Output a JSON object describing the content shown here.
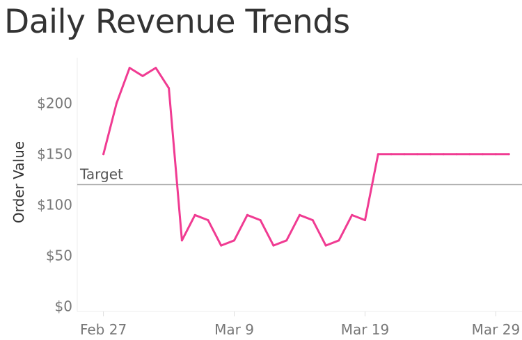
{
  "chart_data": {
    "type": "line",
    "title": "Daily Revenue Trends",
    "ylabel": "Order Value",
    "xlabel": "",
    "ylim": [
      -5,
      245
    ],
    "xlim": [
      "2025-02-25",
      "2025-03-31"
    ],
    "y_ticks": [
      {
        "value": 0,
        "label": "$0"
      },
      {
        "value": 50,
        "label": "$50"
      },
      {
        "value": 100,
        "label": "$100"
      },
      {
        "value": 150,
        "label": "$150"
      },
      {
        "value": 200,
        "label": "$200"
      }
    ],
    "x_ticks": [
      {
        "date": "2025-02-27",
        "label": "Feb 27"
      },
      {
        "date": "2025-03-09",
        "label": "Mar 9"
      },
      {
        "date": "2025-03-19",
        "label": "Mar 19"
      },
      {
        "date": "2025-03-29",
        "label": "Mar 29"
      }
    ],
    "reference_line": {
      "label": "Target",
      "value": 120,
      "color": "#aaaaaa"
    },
    "grid": false,
    "legend": "none",
    "series": [
      {
        "color": "#f03b92",
        "points": [
          {
            "x": "2025-02-27",
            "y": 150
          },
          {
            "x": "2025-02-28",
            "y": 200
          },
          {
            "x": "2025-03-01",
            "y": 235
          },
          {
            "x": "2025-03-02",
            "y": 227
          },
          {
            "x": "2025-03-03",
            "y": 235
          },
          {
            "x": "2025-03-04",
            "y": 215
          },
          {
            "x": "2025-03-05",
            "y": 65
          },
          {
            "x": "2025-03-06",
            "y": 90
          },
          {
            "x": "2025-03-07",
            "y": 85
          },
          {
            "x": "2025-03-08",
            "y": 60
          },
          {
            "x": "2025-03-09",
            "y": 65
          },
          {
            "x": "2025-03-10",
            "y": 90
          },
          {
            "x": "2025-03-11",
            "y": 85
          },
          {
            "x": "2025-03-12",
            "y": 60
          },
          {
            "x": "2025-03-13",
            "y": 65
          },
          {
            "x": "2025-03-14",
            "y": 90
          },
          {
            "x": "2025-03-15",
            "y": 85
          },
          {
            "x": "2025-03-16",
            "y": 60
          },
          {
            "x": "2025-03-17",
            "y": 65
          },
          {
            "x": "2025-03-18",
            "y": 90
          },
          {
            "x": "2025-03-19",
            "y": 85
          },
          {
            "x": "2025-03-20",
            "y": 150
          },
          {
            "x": "2025-03-21",
            "y": 150
          },
          {
            "x": "2025-03-22",
            "y": 150
          },
          {
            "x": "2025-03-23",
            "y": 150
          },
          {
            "x": "2025-03-24",
            "y": 150
          },
          {
            "x": "2025-03-25",
            "y": 150
          },
          {
            "x": "2025-03-26",
            "y": 150
          },
          {
            "x": "2025-03-27",
            "y": 150
          },
          {
            "x": "2025-03-28",
            "y": 150
          },
          {
            "x": "2025-03-29",
            "y": 150
          },
          {
            "x": "2025-03-30",
            "y": 150
          }
        ]
      }
    ]
  }
}
